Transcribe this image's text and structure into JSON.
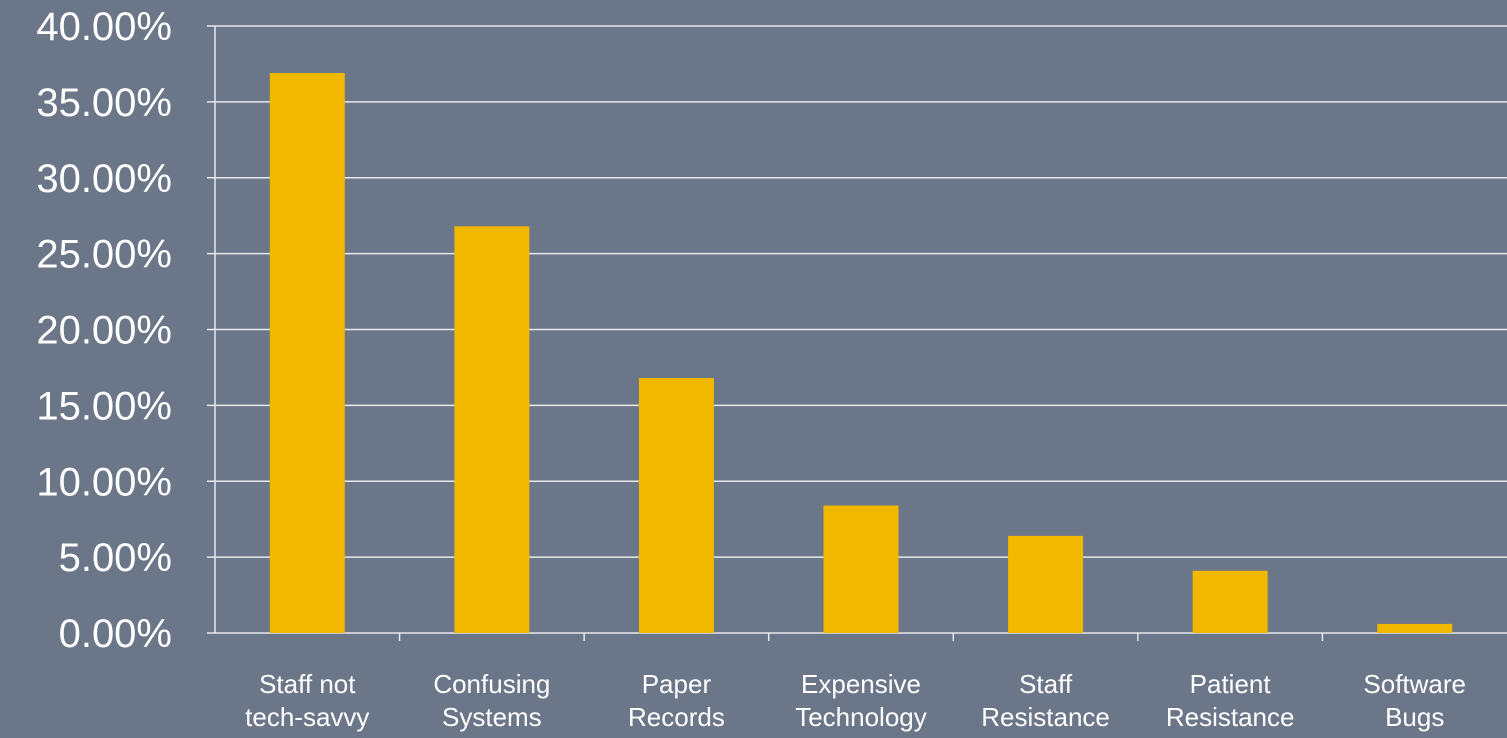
{
  "chart_data": {
    "type": "bar",
    "categories": [
      [
        "Staff not",
        "tech-savvy"
      ],
      [
        "Confusing",
        "Systems"
      ],
      [
        "Paper",
        "Records"
      ],
      [
        "Expensive",
        "Technology"
      ],
      [
        "Staff",
        "Resistance"
      ],
      [
        "Patient",
        "Resistance"
      ],
      [
        "Software",
        "Bugs"
      ]
    ],
    "values": [
      36.9,
      26.8,
      16.8,
      8.4,
      6.4,
      4.1,
      0.6
    ],
    "ylim": [
      0,
      40
    ],
    "yticks": [
      "0.00%",
      "5.00%",
      "10.00%",
      "15.00%",
      "20.00%",
      "25.00%",
      "30.00%",
      "35.00%",
      "40.00%"
    ],
    "grid": true,
    "legend": "none",
    "colors": {
      "background": "#6b7689",
      "bar": "#f2b800",
      "gridline": "#e6e9ee",
      "text": "#ffffff"
    }
  }
}
